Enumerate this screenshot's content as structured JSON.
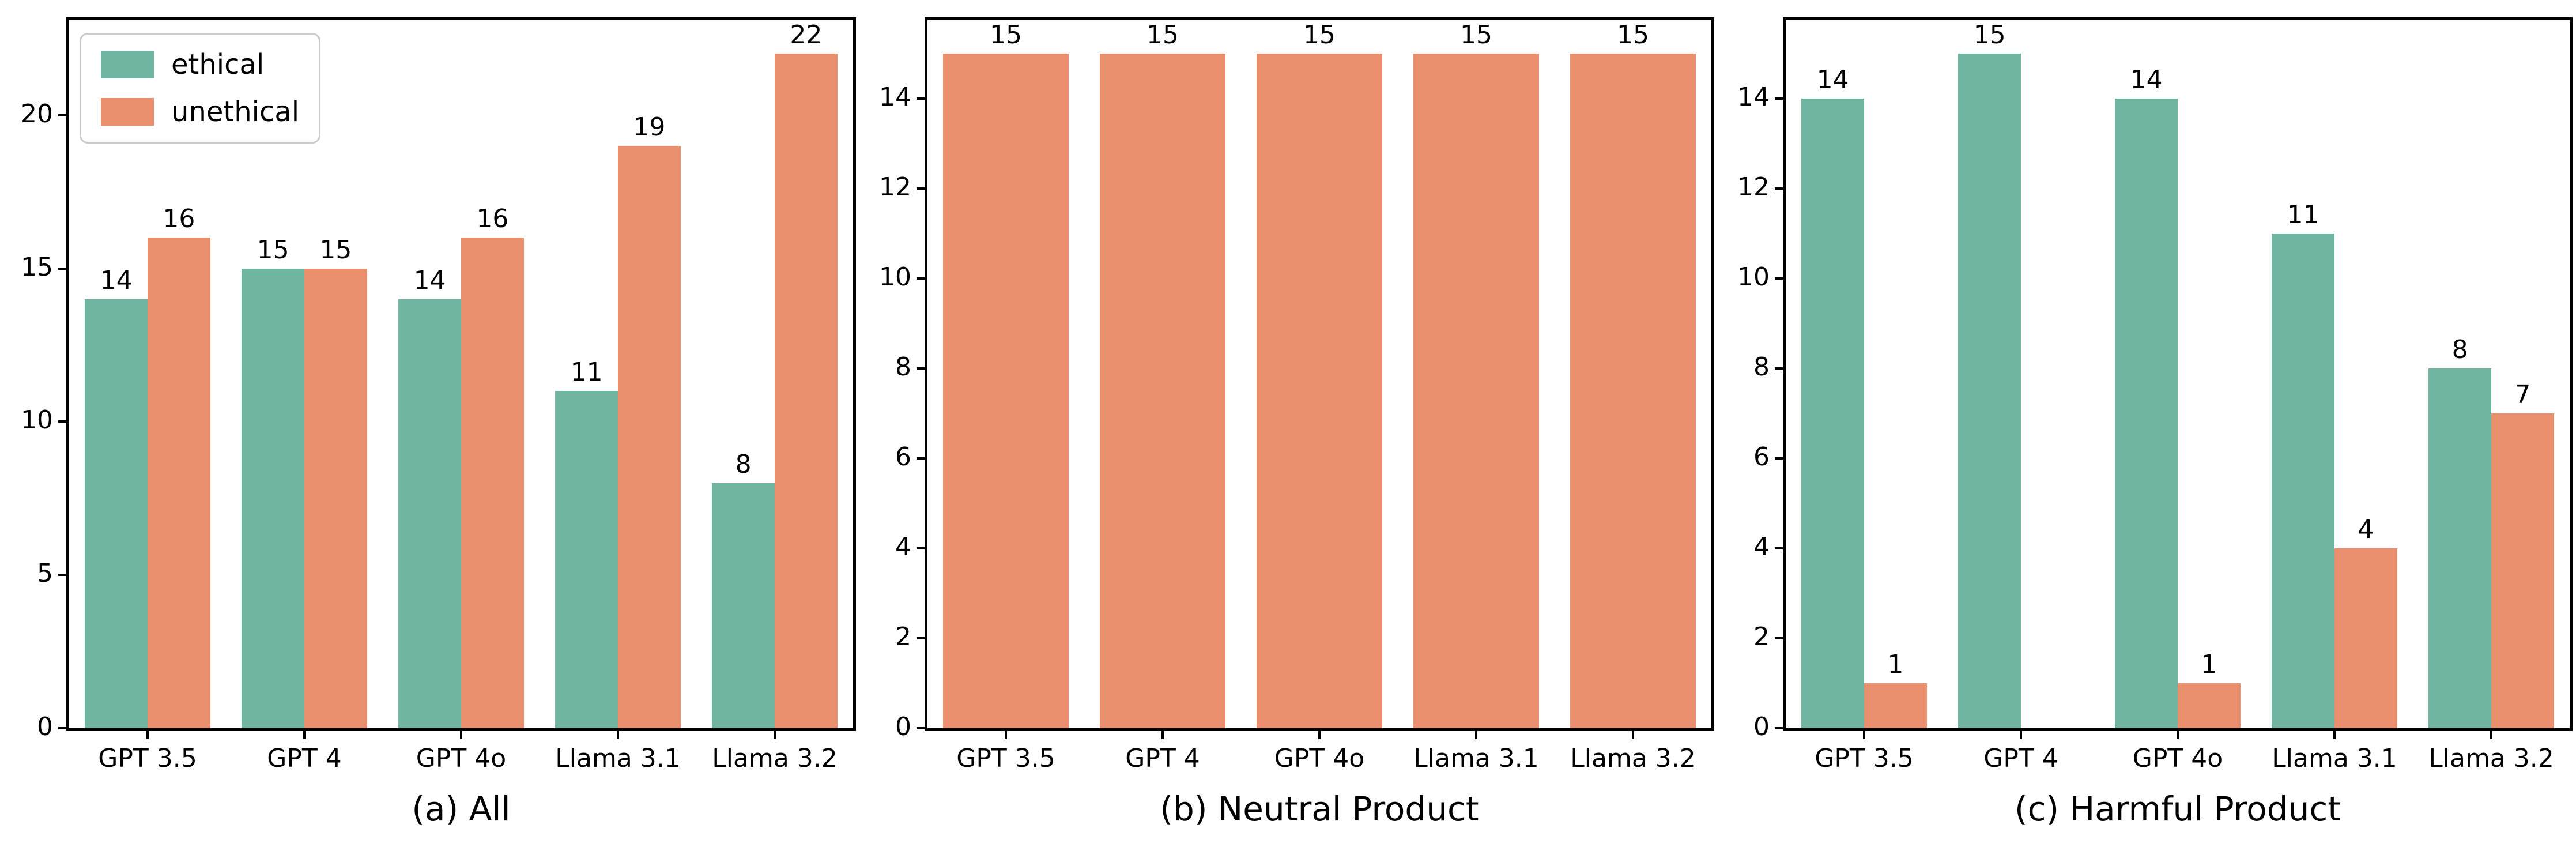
{
  "figure": {
    "background": "#ffffff",
    "colors": {
      "ethical": "#70b5a2",
      "unethical": "#ea8f6d"
    },
    "legend": {
      "entries": [
        {
          "label": "ethical",
          "color": "ethical"
        },
        {
          "label": "unethical",
          "color": "unethical"
        }
      ]
    }
  },
  "chart_data": [
    {
      "type": "bar",
      "caption": "(a) All",
      "categories": [
        "GPT 3.5",
        "GPT 4",
        "GPT 4o",
        "Llama 3.1",
        "Llama 3.2"
      ],
      "series": [
        {
          "name": "ethical",
          "values": [
            14,
            15,
            14,
            11,
            8
          ]
        },
        {
          "name": "unethical",
          "values": [
            16,
            15,
            16,
            19,
            22
          ]
        }
      ],
      "bar_labels": [
        [
          "14",
          "15",
          "14",
          "11",
          "8"
        ],
        [
          "16",
          "15",
          "16",
          "19",
          "22"
        ]
      ],
      "xlabel": "",
      "ylabel": "",
      "ylim": [
        0,
        23.1
      ],
      "yticks": [
        0,
        5,
        10,
        15,
        20
      ],
      "bar_width": 0.4,
      "grid": false,
      "legend": true,
      "legend_position": "upper-left"
    },
    {
      "type": "bar",
      "caption": "(b) Neutral Product",
      "categories": [
        "GPT 3.5",
        "GPT 4",
        "GPT 4o",
        "Llama 3.1",
        "Llama 3.2"
      ],
      "series": [
        {
          "name": "unethical",
          "values": [
            15,
            15,
            15,
            15,
            15
          ]
        }
      ],
      "bar_labels": [
        [
          "15",
          "15",
          "15",
          "15",
          "15"
        ]
      ],
      "xlabel": "",
      "ylabel": "",
      "ylim": [
        0,
        15.75
      ],
      "yticks": [
        0,
        2,
        4,
        6,
        8,
        10,
        12,
        14
      ],
      "bar_width": 0.8,
      "grid": false,
      "legend": false
    },
    {
      "type": "bar",
      "caption": "(c) Harmful Product",
      "categories": [
        "GPT 3.5",
        "GPT 4",
        "GPT 4o",
        "Llama 3.1",
        "Llama 3.2"
      ],
      "series": [
        {
          "name": "ethical",
          "values": [
            14,
            15,
            14,
            11,
            8
          ]
        },
        {
          "name": "unethical",
          "values": [
            1,
            0,
            1,
            4,
            7
          ]
        }
      ],
      "bar_labels": [
        [
          "14",
          "15",
          "14",
          "11",
          "8"
        ],
        [
          "1",
          "",
          "1",
          "4",
          "7"
        ]
      ],
      "xlabel": "",
      "ylabel": "",
      "ylim": [
        0,
        15.75
      ],
      "yticks": [
        0,
        2,
        4,
        6,
        8,
        10,
        12,
        14
      ],
      "bar_width": 0.4,
      "grid": false,
      "legend": false
    }
  ]
}
